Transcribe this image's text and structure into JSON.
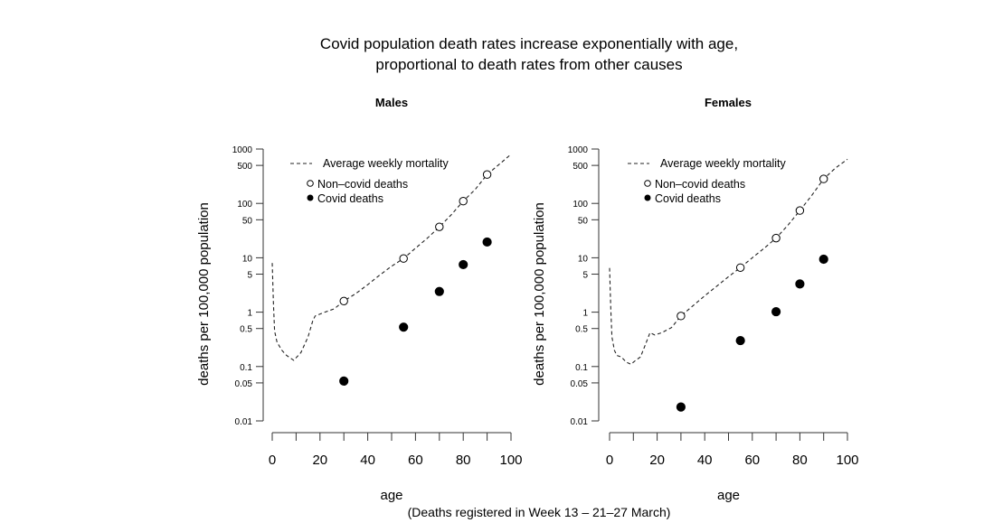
{
  "title_line1": "Covid population death rates increase exponentially with age,",
  "title_line2": "proportional to death rates from other causes",
  "caption": "(Deaths registered in Week 13 – 21–27 March)",
  "chart_data": [
    {
      "type": "scatter",
      "title": "Males",
      "xlabel": "age",
      "ylabel": "deaths per 100,000 population",
      "xlim": [
        0,
        100
      ],
      "ylim": [
        0.01,
        1000
      ],
      "yscale": "log",
      "x_ticks": [
        0,
        20,
        40,
        60,
        80,
        100
      ],
      "y_ticks": [
        "1000",
        "500",
        "100",
        "50",
        "10",
        "5",
        "1",
        "0.5",
        "0.1",
        "0.05",
        "0.01"
      ],
      "legend": [
        "Average weekly mortality",
        "Non–covid deaths",
        "Covid deaths"
      ],
      "legend_position": "top-left",
      "grid": false,
      "series": [
        {
          "name": "Average weekly mortality",
          "style": "dashed-line",
          "x": [
            0,
            0.5,
            1,
            2,
            4,
            6,
            9,
            12,
            15,
            17,
            18,
            22,
            26,
            30,
            35,
            40,
            45,
            50,
            55,
            60,
            65,
            70,
            75,
            80,
            85,
            90,
            95,
            100
          ],
          "y": [
            8,
            1.5,
            0.45,
            0.28,
            0.2,
            0.16,
            0.13,
            0.18,
            0.35,
            0.7,
            0.85,
            1.0,
            1.15,
            1.6,
            2.2,
            3.2,
            4.8,
            7,
            9.7,
            15,
            23,
            37,
            62,
            110,
            180,
            340,
            520,
            800
          ]
        },
        {
          "name": "Non–covid deaths",
          "style": "open-circle",
          "x": [
            30,
            55,
            70,
            80,
            90
          ],
          "y": [
            1.6,
            9.7,
            37,
            110,
            340
          ]
        },
        {
          "name": "Covid deaths",
          "style": "filled-circle",
          "x": [
            30,
            55,
            70,
            80,
            90
          ],
          "y": [
            0.054,
            0.53,
            2.4,
            7.5,
            19.5
          ]
        }
      ]
    },
    {
      "type": "scatter",
      "title": "Females",
      "xlabel": "age",
      "ylabel": "deaths per 100,000 population",
      "xlim": [
        0,
        100
      ],
      "ylim": [
        0.01,
        1000
      ],
      "yscale": "log",
      "x_ticks": [
        0,
        20,
        40,
        60,
        80,
        100
      ],
      "y_ticks": [
        "1000",
        "500",
        "100",
        "50",
        "10",
        "5",
        "1",
        "0.5",
        "0.1",
        "0.05",
        "0.01"
      ],
      "legend": [
        "Average weekly mortality",
        "Non–covid deaths",
        "Covid deaths"
      ],
      "legend_position": "top-left",
      "grid": false,
      "series": [
        {
          "name": "Average weekly mortality",
          "style": "dashed-line",
          "x": [
            0,
            0.5,
            1,
            2,
            3,
            5,
            7,
            9,
            11,
            13,
            15,
            17,
            19,
            22,
            26,
            30,
            35,
            40,
            45,
            50,
            55,
            60,
            65,
            70,
            75,
            80,
            85,
            90,
            95,
            100
          ],
          "y": [
            6.5,
            1.2,
            0.35,
            0.2,
            0.16,
            0.15,
            0.12,
            0.11,
            0.13,
            0.15,
            0.25,
            0.42,
            0.38,
            0.42,
            0.52,
            0.85,
            1.3,
            2.0,
            3.0,
            4.5,
            6.6,
            10,
            15,
            23,
            40,
            74,
            140,
            282,
            450,
            650
          ]
        },
        {
          "name": "Non–covid deaths",
          "style": "open-circle",
          "x": [
            30,
            55,
            70,
            80,
            90
          ],
          "y": [
            0.85,
            6.6,
            23,
            74,
            282
          ]
        },
        {
          "name": "Covid deaths",
          "style": "filled-circle",
          "x": [
            30,
            55,
            70,
            80,
            90
          ],
          "y": [
            0.018,
            0.3,
            1.02,
            3.3,
            9.4
          ]
        }
      ]
    }
  ]
}
